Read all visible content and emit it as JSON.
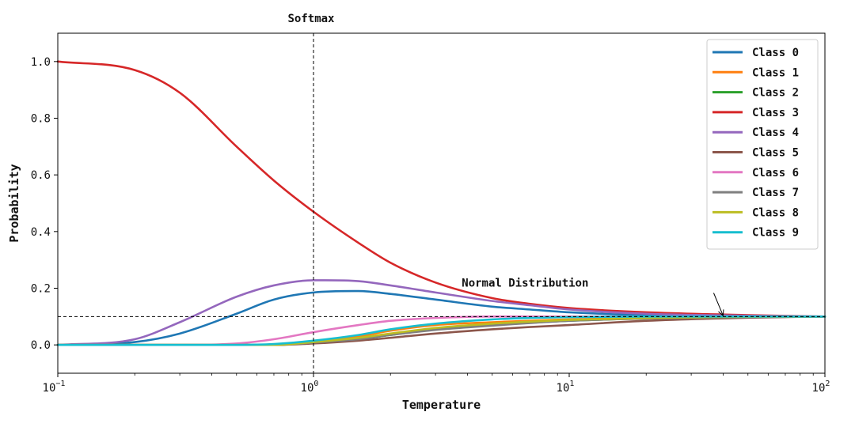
{
  "chart_data": {
    "type": "line",
    "x_scale": "log",
    "xlim": [
      0.1,
      100
    ],
    "ylim": [
      -0.1,
      1.1
    ],
    "xlabel": "Temperature",
    "ylabel": "Probability",
    "x_ticks": [
      {
        "value": 0.1,
        "base": "10",
        "exp": "−1"
      },
      {
        "value": 1,
        "base": "10",
        "exp": "0"
      },
      {
        "value": 10,
        "base": "10",
        "exp": "1"
      },
      {
        "value": 100,
        "base": "10",
        "exp": "2"
      }
    ],
    "y_ticks": [
      {
        "value": 0.0,
        "label": "0.0"
      },
      {
        "value": 0.2,
        "label": "0.2"
      },
      {
        "value": 0.4,
        "label": "0.4"
      },
      {
        "value": 0.6,
        "label": "0.6"
      },
      {
        "value": 0.8,
        "label": "0.8"
      },
      {
        "value": 1.0,
        "label": "1.0"
      }
    ],
    "vline": {
      "x": 1,
      "label": "Softmax"
    },
    "hline": {
      "y": 0.1
    },
    "annotation": {
      "text": "Normal Distribution",
      "text_x": 3.8,
      "text_y": 0.2,
      "point_x": 40,
      "point_y": 0.1
    },
    "legend_position": "top-right",
    "grid": false,
    "x": [
      0.1,
      0.2,
      0.3,
      0.5,
      0.7,
      1,
      1.5,
      2,
      3,
      5,
      7,
      10,
      20,
      50,
      100
    ],
    "series": [
      {
        "name": "Class 0",
        "color": "#1f77b4",
        "values": [
          0.0,
          0.01,
          0.04,
          0.11,
          0.16,
          0.185,
          0.19,
          0.18,
          0.16,
          0.135,
          0.125,
          0.115,
          0.105,
          0.101,
          0.1
        ]
      },
      {
        "name": "Class 1",
        "color": "#ff7f0e",
        "values": [
          0.0,
          0.0,
          0.0,
          0.0,
          0.0,
          0.01,
          0.03,
          0.05,
          0.07,
          0.08,
          0.085,
          0.09,
          0.095,
          0.098,
          0.1
        ]
      },
      {
        "name": "Class 2",
        "color": "#2ca02c",
        "values": [
          0.0,
          0.0,
          0.0,
          0.0,
          0.0,
          0.008,
          0.02,
          0.035,
          0.055,
          0.07,
          0.078,
          0.085,
          0.093,
          0.098,
          0.1
        ]
      },
      {
        "name": "Class 3",
        "color": "#d62728",
        "values": [
          1.0,
          0.97,
          0.89,
          0.7,
          0.58,
          0.47,
          0.36,
          0.29,
          0.22,
          0.165,
          0.145,
          0.13,
          0.115,
          0.105,
          0.1
        ]
      },
      {
        "name": "Class 4",
        "color": "#9467bd",
        "values": [
          0.0,
          0.02,
          0.08,
          0.17,
          0.21,
          0.228,
          0.225,
          0.21,
          0.185,
          0.155,
          0.14,
          0.125,
          0.11,
          0.103,
          0.1
        ]
      },
      {
        "name": "Class 5",
        "color": "#8c564b",
        "values": [
          0.0,
          0.0,
          0.0,
          0.0,
          0.0,
          0.005,
          0.015,
          0.025,
          0.04,
          0.055,
          0.063,
          0.07,
          0.085,
          0.096,
          0.1
        ]
      },
      {
        "name": "Class 6",
        "color": "#e377c2",
        "values": [
          0.0,
          0.0,
          0.0,
          0.005,
          0.02,
          0.045,
          0.07,
          0.085,
          0.095,
          0.1,
          0.1,
          0.1,
          0.1,
          0.1,
          0.1
        ]
      },
      {
        "name": "Class 7",
        "color": "#7f7f7f",
        "values": [
          0.0,
          0.0,
          0.0,
          0.0,
          0.0,
          0.008,
          0.02,
          0.035,
          0.053,
          0.068,
          0.077,
          0.085,
          0.093,
          0.098,
          0.1
        ]
      },
      {
        "name": "Class 8",
        "color": "#bcbd22",
        "values": [
          0.0,
          0.0,
          0.0,
          0.0,
          0.0,
          0.01,
          0.025,
          0.04,
          0.06,
          0.075,
          0.082,
          0.088,
          0.095,
          0.099,
          0.1
        ]
      },
      {
        "name": "Class 9",
        "color": "#17becf",
        "values": [
          0.0,
          0.0,
          0.0,
          0.0,
          0.003,
          0.015,
          0.035,
          0.055,
          0.075,
          0.09,
          0.095,
          0.098,
          0.1,
          0.1,
          0.1
        ]
      }
    ]
  }
}
